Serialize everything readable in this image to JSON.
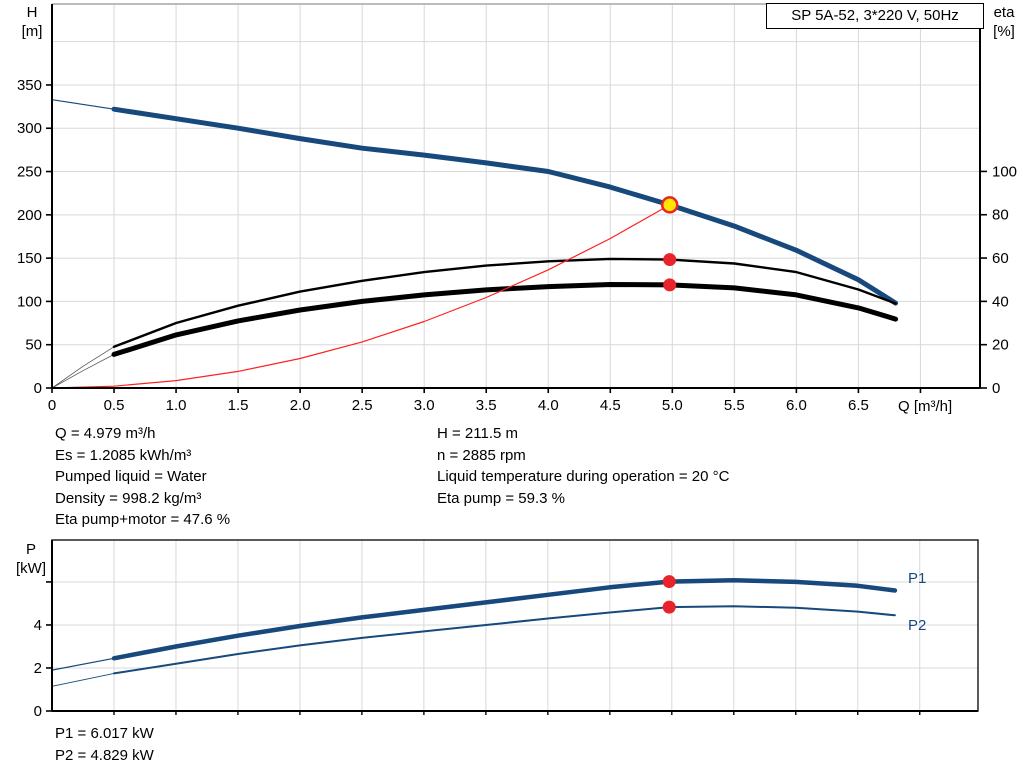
{
  "title_box": "SP 5A-52, 3*220 V, 50Hz",
  "axis_titles": {
    "h_line1": "H",
    "h_line2": "[m]",
    "eta_line1": "eta",
    "eta_line2": "[%]",
    "q": "Q [m³/h]",
    "p_line1": "P",
    "p_line2": "[kW]"
  },
  "info_left": [
    "Q = 4.979 m³/h",
    "Es = 1.2085 kWh/m³",
    "Pumped liquid = Water",
    "Density = 998.2 kg/m³",
    "Eta pump+motor = 47.6 %"
  ],
  "info_right": [
    "H = 211.5 m",
    "n = 2885 rpm",
    "Liquid temperature during operation = 20 °C",
    "Eta pump = 59.3 %"
  ],
  "power_info": [
    "P1 = 6.017 kW",
    "P2 = 4.829 kW"
  ],
  "colors": {
    "curve_blue": "#17497d",
    "red": "#e8232b",
    "red_line": "#ff2020",
    "duty_yellow": "#ffe400",
    "grid": "#d8d8d8",
    "border_gray": "#a6a6a6",
    "axis_black": "#000000",
    "thin_gray": "#555555"
  },
  "chart_data": [
    {
      "id": "main",
      "type": "line",
      "title": "SP 5A-52, 3*220 V, 50Hz",
      "xlabel": "Q [m³/h]",
      "ylabel": "H [m]",
      "y2label": "eta [%]",
      "xlim": [
        0,
        7.48
      ],
      "ylim": [
        0,
        443.5
      ],
      "y2lim": [
        0,
        177.3
      ],
      "grid": true,
      "x_tick_labels": [
        "0",
        "0.5",
        "1.0",
        "1.5",
        "2.0",
        "2.5",
        "3.0",
        "3.5",
        "4.0",
        "4.5",
        "5.0",
        "5.5",
        "6.0",
        "6.5"
      ],
      "x_ticks_unlabeled": [
        7.0
      ],
      "y_tick_labels": [
        "0",
        "50",
        "100",
        "150",
        "200",
        "250",
        "300",
        "350"
      ],
      "y_grid_step": 50,
      "y2_tick_labels": [
        "0",
        "20",
        "40",
        "60",
        "80",
        "100"
      ],
      "series": [
        {
          "id": "head-curve",
          "name": "H",
          "axis": "y",
          "color": "#17497d",
          "width": 5,
          "thin_width": 1.2,
          "thin_until": 0.5,
          "points": [
            [
              0,
              333
            ],
            [
              0.5,
              322
            ],
            [
              1,
              311
            ],
            [
              1.5,
              300
            ],
            [
              2,
              288
            ],
            [
              2.5,
              277
            ],
            [
              3,
              269
            ],
            [
              3.5,
              260
            ],
            [
              4,
              250
            ],
            [
              4.5,
              232
            ],
            [
              4.979,
              211.5
            ],
            [
              5.5,
              187
            ],
            [
              6,
              159
            ],
            [
              6.5,
              125
            ],
            [
              6.8,
              98
            ]
          ]
        },
        {
          "id": "eta-pump-curve",
          "name": "Eta pump",
          "axis": "y2",
          "color": "#000000",
          "width": 2.4,
          "thin_width": 0.8,
          "thin_until": 0.5,
          "thin_color": "#555555",
          "points": [
            [
              0,
              0
            ],
            [
              0.25,
              10
            ],
            [
              0.5,
              19
            ],
            [
              1,
              30
            ],
            [
              1.5,
              38
            ],
            [
              2,
              44.5
            ],
            [
              2.5,
              49.5
            ],
            [
              3,
              53.5
            ],
            [
              3.5,
              56.5
            ],
            [
              4,
              58.5
            ],
            [
              4.5,
              59.6
            ],
            [
              4.979,
              59.3
            ],
            [
              5.5,
              57.5
            ],
            [
              6,
              53.5
            ],
            [
              6.5,
              45.5
            ],
            [
              6.8,
              39
            ]
          ]
        },
        {
          "id": "eta-pump-motor-curve",
          "name": "Eta pump+motor",
          "axis": "y2",
          "color": "#000000",
          "width": 5,
          "thin_width": 0.8,
          "thin_until": 0.5,
          "thin_color": "#555555",
          "points": [
            [
              0,
              0
            ],
            [
              0.25,
              8
            ],
            [
              0.5,
              15.5
            ],
            [
              1,
              24.5
            ],
            [
              1.5,
              31
            ],
            [
              2,
              36
            ],
            [
              2.5,
              40
            ],
            [
              3,
              43
            ],
            [
              3.5,
              45.3
            ],
            [
              4,
              46.8
            ],
            [
              4.5,
              47.8
            ],
            [
              4.979,
              47.6
            ],
            [
              5.5,
              46.2
            ],
            [
              6,
              43
            ],
            [
              6.5,
              37
            ],
            [
              6.8,
              31.8
            ]
          ]
        },
        {
          "id": "system-curve",
          "name": "System curve",
          "axis": "y",
          "color": "#ff2020",
          "width": 1.2,
          "points": [
            [
              0,
              0
            ],
            [
              0.5,
              2.1
            ],
            [
              1,
              8.5
            ],
            [
              1.5,
              19.2
            ],
            [
              2,
              34.1
            ],
            [
              2.5,
              53.3
            ],
            [
              3,
              76.8
            ],
            [
              3.5,
              104.5
            ],
            [
              4,
              136.5
            ],
            [
              4.5,
              172.7
            ],
            [
              4.979,
              211.5
            ]
          ]
        }
      ],
      "markers": [
        {
          "id": "duty-point",
          "x": 4.979,
          "y": 211.5,
          "axis": "y",
          "r": 7.5,
          "fill": "#ffe400",
          "stroke": "#e8232b",
          "stroke_width": 2.5
        },
        {
          "id": "eta-pump-point",
          "x": 4.979,
          "y": 59.3,
          "axis": "y2",
          "r": 6.5,
          "fill": "#e8232b"
        },
        {
          "id": "eta-pump-motor-point",
          "x": 4.979,
          "y": 47.6,
          "axis": "y2",
          "r": 6.5,
          "fill": "#e8232b"
        }
      ]
    },
    {
      "id": "power",
      "type": "line",
      "title": "",
      "xlabel": "",
      "ylabel": "P [kW]",
      "xlim": [
        0,
        7.47
      ],
      "ylim": [
        0,
        7.95
      ],
      "grid": true,
      "x_tick_labels": [],
      "y_tick_labels": [
        "0",
        "2",
        "4"
      ],
      "y_ticks_unlabeled": [
        6
      ],
      "y_grid_step": 2,
      "series": [
        {
          "id": "p1-curve",
          "name": "P1",
          "color": "#17497d",
          "width": 4.5,
          "thin_width": 1.2,
          "thin_until": 0.5,
          "points": [
            [
              0,
              1.9
            ],
            [
              0.5,
              2.45
            ],
            [
              1,
              3.0
            ],
            [
              1.5,
              3.5
            ],
            [
              2,
              3.95
            ],
            [
              2.5,
              4.35
            ],
            [
              3,
              4.7
            ],
            [
              3.5,
              5.05
            ],
            [
              4,
              5.4
            ],
            [
              4.5,
              5.75
            ],
            [
              4.979,
              6.017
            ],
            [
              5.5,
              6.08
            ],
            [
              6,
              6.0
            ],
            [
              6.5,
              5.82
            ],
            [
              6.8,
              5.6
            ]
          ]
        },
        {
          "id": "p2-curve",
          "name": "P2",
          "color": "#17497d",
          "width": 2,
          "thin_width": 0.9,
          "thin_until": 0.5,
          "points": [
            [
              0,
              1.15
            ],
            [
              0.5,
              1.75
            ],
            [
              1,
              2.2
            ],
            [
              1.5,
              2.65
            ],
            [
              2,
              3.05
            ],
            [
              2.5,
              3.4
            ],
            [
              3,
              3.7
            ],
            [
              3.5,
              4.0
            ],
            [
              4,
              4.3
            ],
            [
              4.5,
              4.58
            ],
            [
              4.979,
              4.829
            ],
            [
              5.5,
              4.87
            ],
            [
              6,
              4.8
            ],
            [
              6.5,
              4.62
            ],
            [
              6.8,
              4.45
            ]
          ]
        }
      ],
      "markers": [
        {
          "id": "p1-point",
          "x": 4.979,
          "y": 6.017,
          "r": 6.5,
          "fill": "#e8232b"
        },
        {
          "id": "p2-point",
          "x": 4.979,
          "y": 4.829,
          "r": 6.5,
          "fill": "#e8232b"
        }
      ]
    }
  ]
}
